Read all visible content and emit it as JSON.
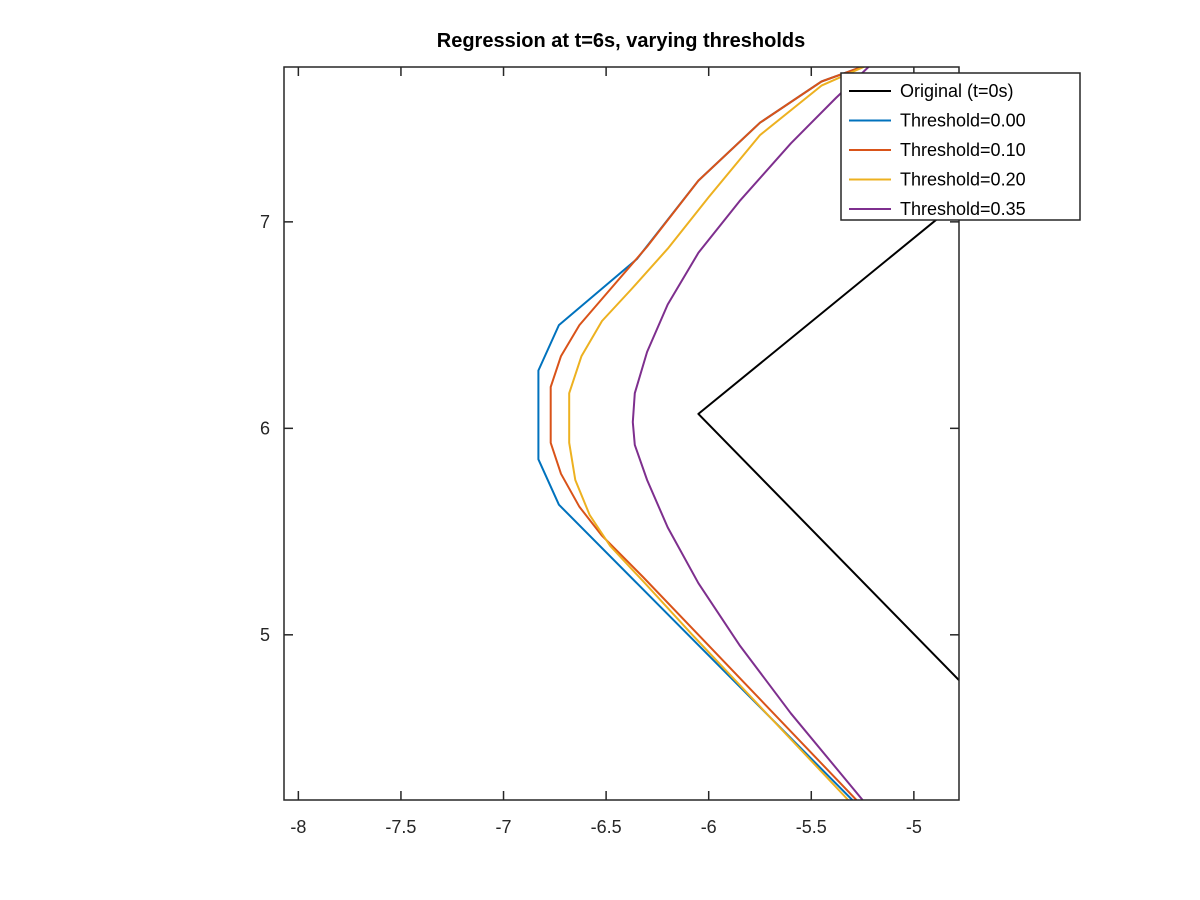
{
  "chart_data": {
    "type": "line",
    "title": "Regression at t=6s, varying thresholds",
    "xlabel": "",
    "ylabel": "",
    "xlim": [
      -8.07,
      -4.78
    ],
    "ylim": [
      4.2,
      7.75
    ],
    "xticks": [
      -8,
      -7.5,
      -7,
      -6.5,
      -6,
      -5.5,
      -5
    ],
    "xtick_labels": [
      "-8",
      "-7.5",
      "-7",
      "-6.5",
      "-6",
      "-5.5",
      "-5"
    ],
    "yticks": [
      5,
      6,
      7
    ],
    "ytick_labels": [
      "5",
      "6",
      "7"
    ],
    "grid": false,
    "legend_position": "top-right",
    "series": [
      {
        "name": "Original (t=0s)",
        "color": "#000000",
        "x": [
          -4.78,
          -6.05,
          -4.78
        ],
        "y": [
          4.78,
          6.07,
          7.1
        ]
      },
      {
        "name": "Threshold=0.00",
        "color": "#0072BD",
        "x": [
          -5.3,
          -6.35,
          -6.73,
          -6.83,
          -6.83,
          -6.73,
          -6.35,
          -6.05,
          -5.75,
          -5.45,
          -5.2
        ],
        "y": [
          4.2,
          5.25,
          5.63,
          5.85,
          6.28,
          6.5,
          6.82,
          7.2,
          7.48,
          7.68,
          7.77
        ]
      },
      {
        "name": "Threshold=0.10",
        "color": "#D95319",
        "x": [
          -5.28,
          -6.05,
          -6.32,
          -6.52,
          -6.63,
          -6.72,
          -6.77,
          -6.77,
          -6.72,
          -6.63,
          -6.5,
          -6.3,
          -6.05,
          -5.75,
          -5.45,
          -5.2
        ],
        "y": [
          4.2,
          5.0,
          5.28,
          5.48,
          5.62,
          5.78,
          5.93,
          6.2,
          6.35,
          6.5,
          6.65,
          6.88,
          7.2,
          7.48,
          7.68,
          7.77
        ]
      },
      {
        "name": "Threshold=0.20",
        "color": "#EDB120",
        "x": [
          -5.32,
          -6.08,
          -6.32,
          -6.48,
          -6.58,
          -6.65,
          -6.68,
          -6.68,
          -6.62,
          -6.52,
          -6.38,
          -6.2,
          -6.0,
          -5.75,
          -5.45,
          -5.2
        ],
        "y": [
          4.2,
          5.0,
          5.26,
          5.43,
          5.58,
          5.75,
          5.93,
          6.17,
          6.35,
          6.52,
          6.67,
          6.87,
          7.12,
          7.42,
          7.66,
          7.77
        ]
      },
      {
        "name": "Threshold=0.35",
        "color": "#7E2F8E",
        "x": [
          -5.25,
          -5.6,
          -5.85,
          -6.05,
          -6.2,
          -6.3,
          -6.36,
          -6.37,
          -6.36,
          -6.3,
          -6.2,
          -6.05,
          -5.85,
          -5.6,
          -5.38,
          -5.2
        ],
        "y": [
          4.2,
          4.62,
          4.95,
          5.25,
          5.52,
          5.75,
          5.92,
          6.03,
          6.17,
          6.37,
          6.6,
          6.85,
          7.1,
          7.38,
          7.6,
          7.77
        ]
      }
    ]
  }
}
